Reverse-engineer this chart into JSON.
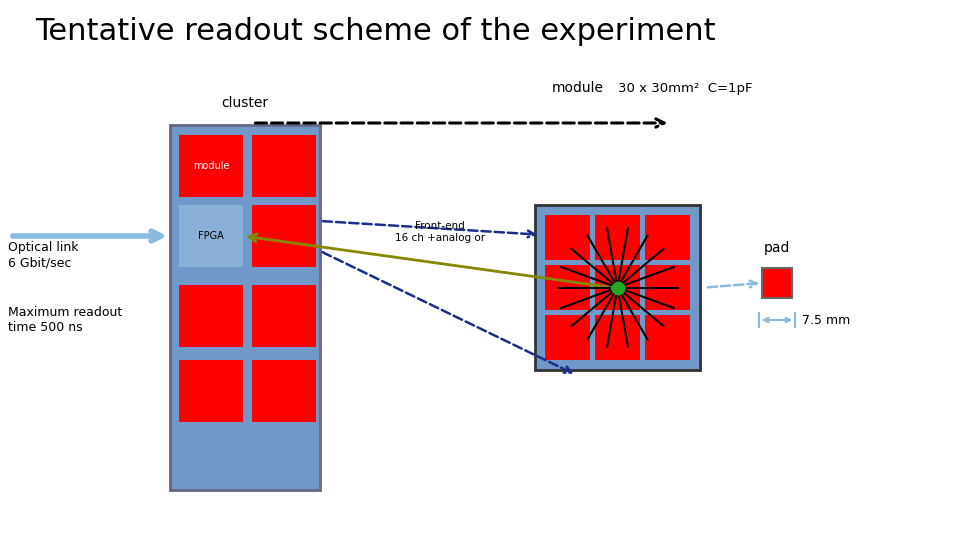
{
  "title": "Tentative readout scheme of the experiment",
  "title_fontsize": 22,
  "bg_color": "#ffffff",
  "cluster_label": "cluster",
  "module_label": "module",
  "module_spec": "30 x 30mm²  C=1pF",
  "fpga_label": "FPGA",
  "frontend_label": "Front-end\n16 ch +analog or",
  "optical_link_label": "Optical link\n6 Gbit/sec",
  "max_readout_label": "Maximum readout\ntime 500 ns",
  "pad_label": "pad",
  "size_label": "7.5 mm",
  "blue_color": "#7098c8",
  "red_color": "#ff0000",
  "dark_blue_dashed": "#1a2f8a",
  "olive_color": "#888800",
  "light_blue_arrow": "#88bbdd",
  "black_dashed": "#000000"
}
